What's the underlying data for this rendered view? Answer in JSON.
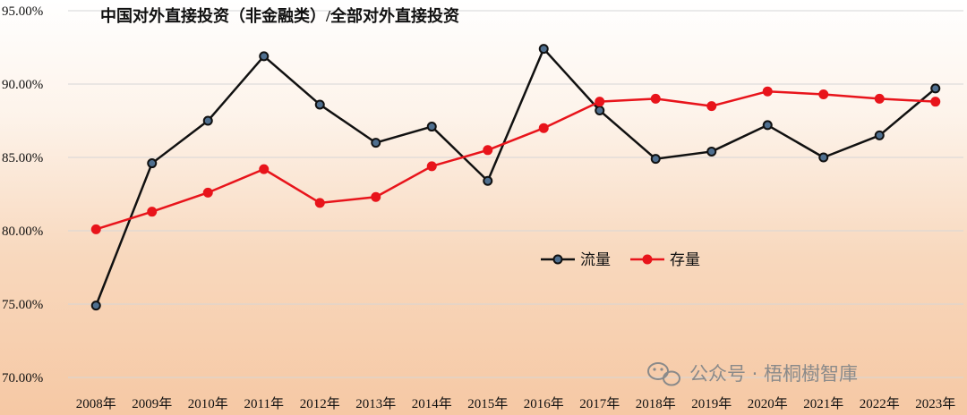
{
  "chart_data": {
    "type": "line",
    "title": "中国对外直接投资（非金融类）/全部对外直接投资",
    "categories": [
      "2008年",
      "2009年",
      "2010年",
      "2011年",
      "2012年",
      "2013年",
      "2014年",
      "2015年",
      "2016年",
      "2017年",
      "2018年",
      "2019年",
      "2020年",
      "2021年",
      "2022年",
      "2023年"
    ],
    "y_ticks": [
      "70.00%",
      "75.00%",
      "80.00%",
      "85.00%",
      "90.00%",
      "95.00%"
    ],
    "ylim": [
      70,
      95
    ],
    "grid": true,
    "legend_position": "center-right",
    "series": [
      {
        "name": "流量",
        "color": "#111111",
        "values": [
          74.9,
          84.6,
          87.5,
          91.9,
          88.6,
          86.0,
          87.1,
          83.4,
          92.4,
          88.2,
          84.9,
          85.4,
          87.2,
          85.0,
          86.5,
          89.7
        ]
      },
      {
        "name": "存量",
        "color": "#e8141b",
        "values": [
          80.1,
          81.3,
          82.6,
          84.2,
          81.9,
          82.3,
          84.4,
          85.5,
          87.0,
          88.8,
          89.0,
          88.5,
          89.5,
          89.3,
          89.0,
          88.8
        ]
      }
    ]
  },
  "watermark": "公众号 · 梧桐樹智庫",
  "watermark_icon": "wechat-icon"
}
